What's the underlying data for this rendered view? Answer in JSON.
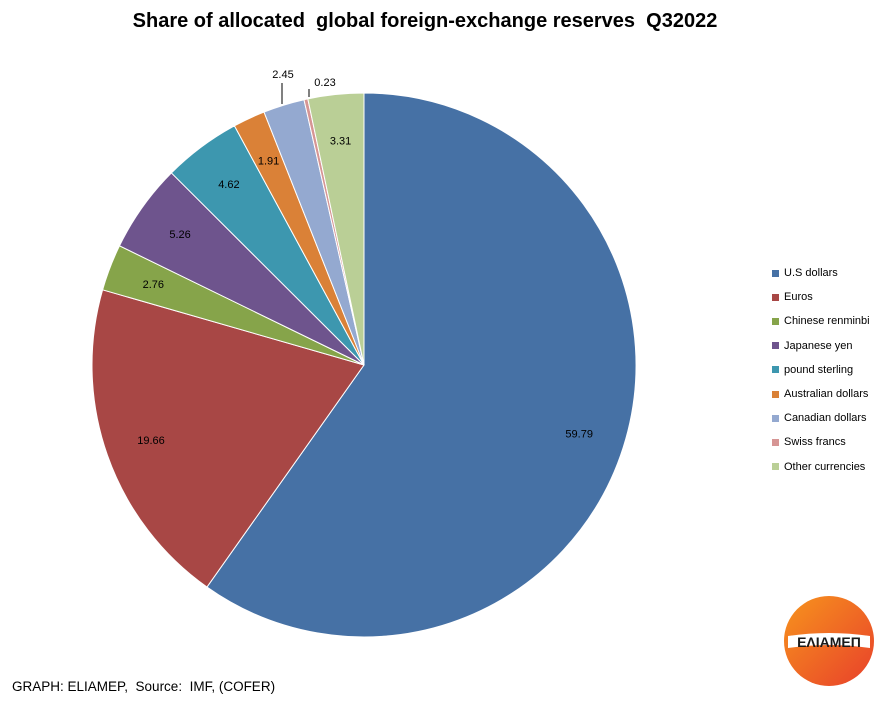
{
  "chart_data": {
    "type": "pie",
    "title": "Share of allocated  global foreign-exchange reserves  Q32022",
    "slices": [
      {
        "label": "U.S dollars",
        "value": 59.79,
        "value_label": "59.79",
        "color": "#4671A5"
      },
      {
        "label": "Euros",
        "value": 19.66,
        "value_label": "19.66",
        "color": "#A84745"
      },
      {
        "label": "Chinese renminbi",
        "value": 2.76,
        "value_label": "2.76",
        "color": "#86A44A"
      },
      {
        "label": "Japanese yen",
        "value": 5.26,
        "value_label": "5.26",
        "color": "#6E548D"
      },
      {
        "label": "pound sterling",
        "value": 4.62,
        "value_label": "4.62",
        "color": "#3D97AF"
      },
      {
        "label": "Australian dollars",
        "value": 1.91,
        "value_label": "1.91",
        "color": "#DA8137"
      },
      {
        "label": "Canadian dollars",
        "value": 2.45,
        "value_label": "2.45",
        "color": "#94A9D0"
      },
      {
        "label": "Swiss francs",
        "value": 0.23,
        "value_label": "0.23",
        "color": "#D69594"
      },
      {
        "label": "Other currencies",
        "value": 3.31,
        "value_label": "3.31",
        "color": "#BACF96"
      }
    ],
    "legend_position": "right"
  },
  "source_note": "GRAPH: ELIAMEP,  Source:  IMF, (COFER)",
  "logo_text": "ΕΛΙΑΜΕΠ"
}
